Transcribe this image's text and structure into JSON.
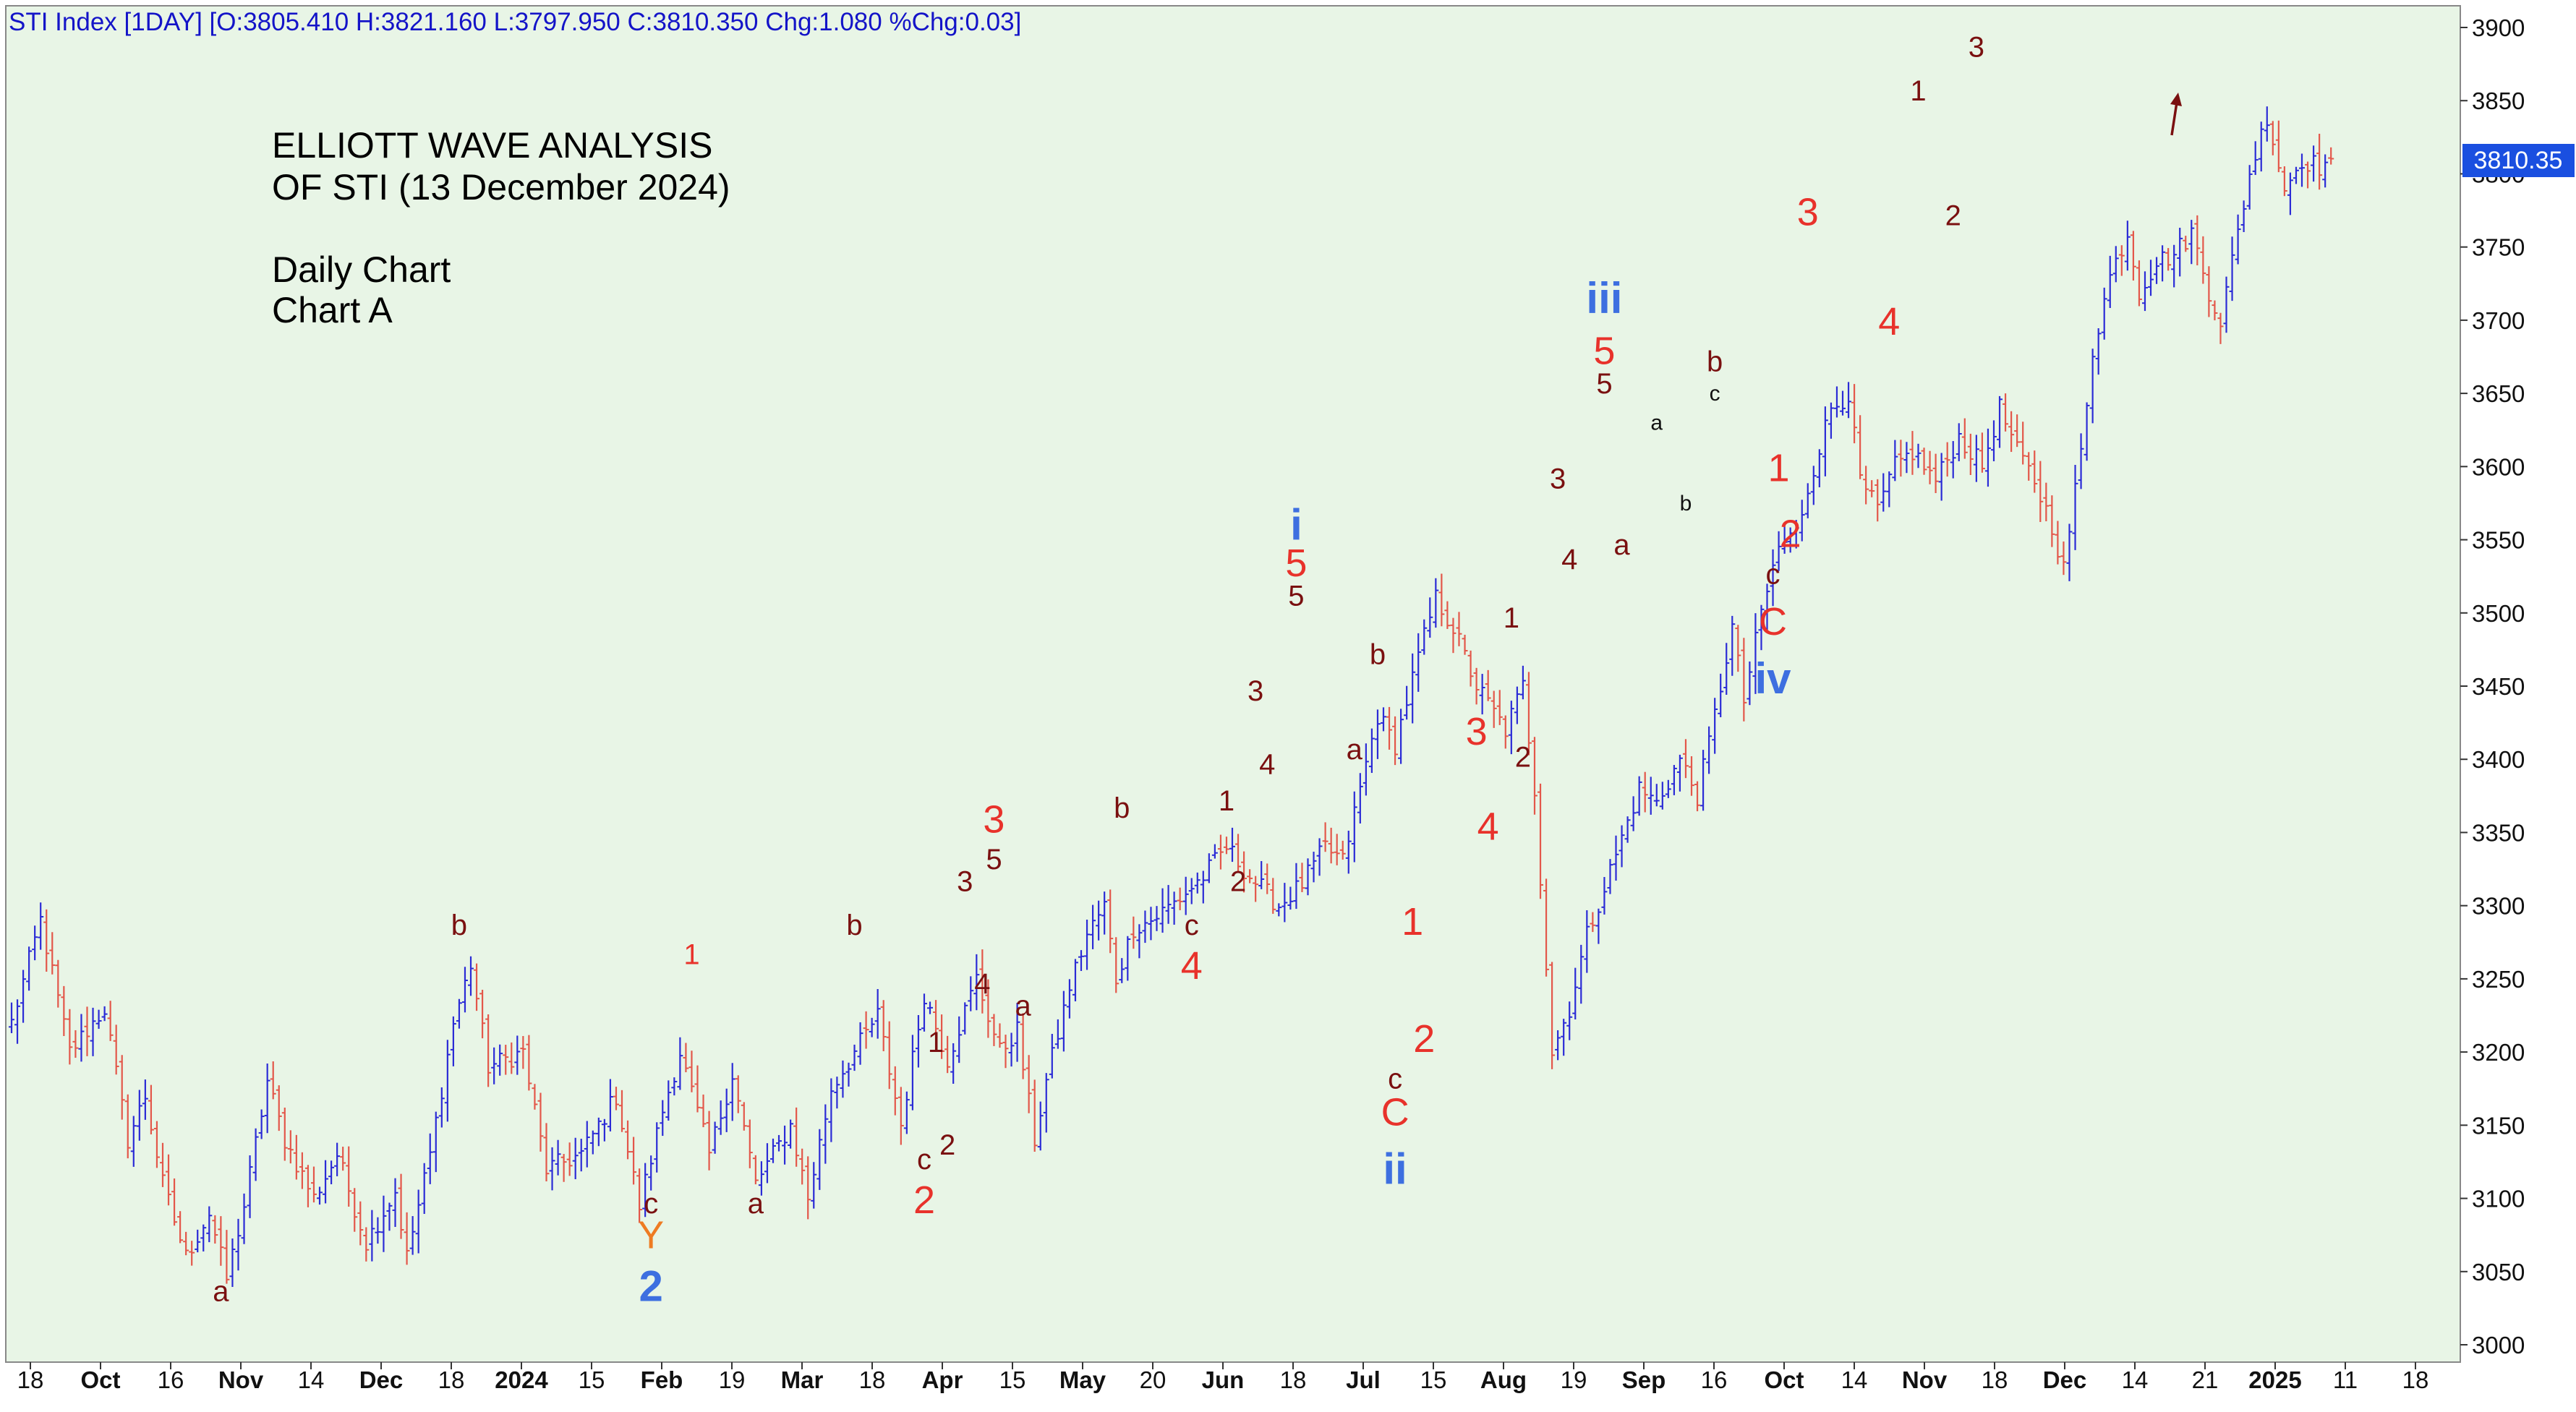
{
  "header": {
    "text": "STI Index [1DAY] [O:3805.410 H:3821.160 L:3797.950 C:3810.350 Chg:1.080 %Chg:0.03]"
  },
  "annotations": {
    "title_line1": "ELLIOTT WAVE ANALYSIS",
    "title_line2": "OF STI (13 December 2024)",
    "subtitle_line1": "Daily Chart",
    "subtitle_line2": "Chart A"
  },
  "price_tag": "3810.35",
  "colors": {
    "background": "#e8f5e6",
    "up_bar": "#2b2bd6",
    "down_bar": "#e3574a",
    "label_dark_red": "#7a1010",
    "label_red": "#e8322b",
    "label_blue": "#3d6fe0",
    "label_orange": "#ee7b22",
    "price_tag_bg": "#1a4fe0",
    "header_text": "#1414c8"
  },
  "chart_data": {
    "type": "ohlc",
    "ylim": [
      3000,
      3900
    ],
    "y_ticks": [
      3000,
      3050,
      3100,
      3150,
      3200,
      3250,
      3300,
      3350,
      3400,
      3450,
      3500,
      3550,
      3600,
      3650,
      3700,
      3750,
      3800,
      3850,
      3900
    ],
    "x_tick_labels": [
      {
        "label": "18",
        "bold": false
      },
      {
        "label": "Oct",
        "bold": true
      },
      {
        "label": "16",
        "bold": false
      },
      {
        "label": "Nov",
        "bold": true
      },
      {
        "label": "14",
        "bold": false
      },
      {
        "label": "Dec",
        "bold": true
      },
      {
        "label": "18",
        "bold": false
      },
      {
        "label": "2024",
        "bold": true
      },
      {
        "label": "15",
        "bold": false
      },
      {
        "label": "Feb",
        "bold": true
      },
      {
        "label": "19",
        "bold": false
      },
      {
        "label": "Mar",
        "bold": true
      },
      {
        "label": "18",
        "bold": false
      },
      {
        "label": "Apr",
        "bold": true
      },
      {
        "label": "15",
        "bold": false
      },
      {
        "label": "May",
        "bold": true
      },
      {
        "label": "20",
        "bold": false
      },
      {
        "label": "Jun",
        "bold": true
      },
      {
        "label": "18",
        "bold": false
      },
      {
        "label": "Jul",
        "bold": true
      },
      {
        "label": "15",
        "bold": false
      },
      {
        "label": "Aug",
        "bold": true
      },
      {
        "label": "19",
        "bold": false
      },
      {
        "label": "Sep",
        "bold": true
      },
      {
        "label": "16",
        "bold": false
      },
      {
        "label": "Oct",
        "bold": true
      },
      {
        "label": "14",
        "bold": false
      },
      {
        "label": "Nov",
        "bold": true
      },
      {
        "label": "18",
        "bold": false
      },
      {
        "label": "Dec",
        "bold": true
      },
      {
        "label": "14",
        "bold": false
      },
      {
        "label": "21",
        "bold": false
      },
      {
        "label": "2025",
        "bold": true
      },
      {
        "label": "11",
        "bold": false
      },
      {
        "label": "18",
        "bold": false
      }
    ],
    "path": [
      [
        0,
        3220
      ],
      [
        5,
        3290
      ],
      [
        10,
        3200
      ],
      [
        16,
        3230
      ],
      [
        20,
        3140
      ],
      [
        23,
        3170
      ],
      [
        26,
        3110
      ],
      [
        30,
        3060
      ],
      [
        34,
        3090
      ],
      [
        37,
        3045
      ],
      [
        40,
        3095
      ],
      [
        44,
        3180
      ],
      [
        47,
        3140
      ],
      [
        52,
        3100
      ],
      [
        56,
        3130
      ],
      [
        61,
        3070
      ],
      [
        66,
        3105
      ],
      [
        68,
        3060
      ],
      [
        72,
        3130
      ],
      [
        76,
        3220
      ],
      [
        79,
        3260
      ],
      [
        82,
        3190
      ],
      [
        88,
        3200
      ],
      [
        92,
        3120
      ],
      [
        98,
        3130
      ],
      [
        104,
        3170
      ],
      [
        108,
        3095
      ],
      [
        112,
        3160
      ],
      [
        115,
        3200
      ],
      [
        120,
        3130
      ],
      [
        124,
        3185
      ],
      [
        128,
        3110
      ],
      [
        134,
        3150
      ],
      [
        137,
        3100
      ],
      [
        141,
        3175
      ],
      [
        145,
        3200
      ],
      [
        149,
        3225
      ],
      [
        153,
        3150
      ],
      [
        157,
        3240
      ],
      [
        161,
        3195
      ],
      [
        166,
        3250
      ],
      [
        170,
        3200
      ],
      [
        173,
        3215
      ],
      [
        176,
        3140
      ],
      [
        178,
        3180
      ],
      [
        182,
        3245
      ],
      [
        185,
        3280
      ],
      [
        188,
        3300
      ],
      [
        190,
        3250
      ],
      [
        193,
        3285
      ],
      [
        196,
        3290
      ],
      [
        201,
        3305
      ],
      [
        205,
        3320
      ],
      [
        209,
        3340
      ],
      [
        213,
        3320
      ],
      [
        218,
        3300
      ],
      [
        222,
        3315
      ],
      [
        226,
        3340
      ],
      [
        229,
        3330
      ],
      [
        232,
        3380
      ],
      [
        235,
        3430
      ],
      [
        238,
        3410
      ],
      [
        242,
        3470
      ],
      [
        245,
        3510
      ],
      [
        248,
        3490
      ],
      [
        252,
        3450
      ],
      [
        257,
        3420
      ],
      [
        260,
        3450
      ],
      [
        262,
        3380
      ],
      [
        265,
        3200
      ],
      [
        268,
        3230
      ],
      [
        271,
        3280
      ],
      [
        276,
        3335
      ],
      [
        280,
        3380
      ],
      [
        283,
        3370
      ],
      [
        287,
        3400
      ],
      [
        290,
        3375
      ],
      [
        293,
        3430
      ],
      [
        296,
        3490
      ],
      [
        298,
        3440
      ],
      [
        301,
        3500
      ],
      [
        304,
        3545
      ],
      [
        307,
        3555
      ],
      [
        310,
        3600
      ],
      [
        313,
        3640
      ],
      [
        316,
        3650
      ],
      [
        318,
        3590
      ],
      [
        321,
        3570
      ],
      [
        324,
        3600
      ],
      [
        327,
        3610
      ],
      [
        331,
        3590
      ],
      [
        335,
        3620
      ],
      [
        339,
        3600
      ],
      [
        342,
        3640
      ],
      [
        345,
        3610
      ],
      [
        348,
        3590
      ],
      [
        351,
        3560
      ],
      [
        353,
        3530
      ],
      [
        356,
        3610
      ],
      [
        358,
        3680
      ],
      [
        361,
        3730
      ],
      [
        364,
        3760
      ],
      [
        366,
        3720
      ],
      [
        369,
        3740
      ],
      [
        372,
        3745
      ],
      [
        375,
        3760
      ],
      [
        378,
        3720
      ],
      [
        380,
        3700
      ],
      [
        382,
        3740
      ],
      [
        385,
        3800
      ],
      [
        388,
        3840
      ],
      [
        391,
        3790
      ],
      [
        394,
        3810
      ],
      [
        397,
        3805
      ],
      [
        399,
        3810
      ]
    ],
    "wave_labels": [
      {
        "t": "b",
        "i": 77,
        "p": 3280,
        "c": "dark",
        "s": "s"
      },
      {
        "t": "a",
        "i": 36,
        "p": 3030,
        "c": "dark",
        "s": "s"
      },
      {
        "t": "1",
        "i": 117,
        "p": 3260,
        "c": "red",
        "s": "s"
      },
      {
        "t": "c",
        "i": 110,
        "p": 3090,
        "c": "dark",
        "s": "s"
      },
      {
        "t": "Y",
        "i": 110,
        "p": 3066,
        "c": "orange",
        "s": "m"
      },
      {
        "t": "2",
        "i": 110,
        "p": 3030,
        "c": "blue",
        "s": "l"
      },
      {
        "t": "a",
        "i": 128,
        "p": 3090,
        "c": "dark",
        "s": "s"
      },
      {
        "t": "b",
        "i": 145,
        "p": 3280,
        "c": "dark",
        "s": "s"
      },
      {
        "t": "1",
        "i": 159,
        "p": 3200,
        "c": "dark",
        "s": "s"
      },
      {
        "t": "c",
        "i": 157,
        "p": 3120,
        "c": "dark",
        "s": "s"
      },
      {
        "t": "2",
        "i": 161,
        "p": 3130,
        "c": "dark",
        "s": "s"
      },
      {
        "t": "2",
        "i": 157,
        "p": 3090,
        "c": "red",
        "s": "m"
      },
      {
        "t": "3",
        "i": 164,
        "p": 3310,
        "c": "dark",
        "s": "s"
      },
      {
        "t": "3",
        "i": 169,
        "p": 3350,
        "c": "red",
        "s": "m"
      },
      {
        "t": "5",
        "i": 169,
        "p": 3325,
        "c": "dark",
        "s": "s"
      },
      {
        "t": "4",
        "i": 167,
        "p": 3240,
        "c": "dark",
        "s": "s"
      },
      {
        "t": "a",
        "i": 174,
        "p": 3225,
        "c": "dark",
        "s": "s"
      },
      {
        "t": "b",
        "i": 191,
        "p": 3360,
        "c": "dark",
        "s": "s"
      },
      {
        "t": "c",
        "i": 203,
        "p": 3280,
        "c": "dark",
        "s": "s"
      },
      {
        "t": "4",
        "i": 203,
        "p": 3250,
        "c": "red",
        "s": "m"
      },
      {
        "t": "1",
        "i": 209,
        "p": 3365,
        "c": "dark",
        "s": "s"
      },
      {
        "t": "2",
        "i": 211,
        "p": 3310,
        "c": "dark",
        "s": "s"
      },
      {
        "t": "3",
        "i": 214,
        "p": 3440,
        "c": "dark",
        "s": "s"
      },
      {
        "t": "4",
        "i": 216,
        "p": 3390,
        "c": "dark",
        "s": "s"
      },
      {
        "t": "i",
        "i": 221,
        "p": 3550,
        "c": "blue",
        "s": "l"
      },
      {
        "t": "5",
        "i": 221,
        "p": 3525,
        "c": "red",
        "s": "m"
      },
      {
        "t": "5",
        "i": 221,
        "p": 3505,
        "c": "dark",
        "s": "s"
      },
      {
        "t": "b",
        "i": 235,
        "p": 3465,
        "c": "dark",
        "s": "s"
      },
      {
        "t": "a",
        "i": 231,
        "p": 3400,
        "c": "dark",
        "s": "s"
      },
      {
        "t": "1",
        "i": 241,
        "p": 3280,
        "c": "red",
        "s": "m"
      },
      {
        "t": "2",
        "i": 243,
        "p": 3200,
        "c": "red",
        "s": "m"
      },
      {
        "t": "c",
        "i": 238,
        "p": 3175,
        "c": "dark",
        "s": "s"
      },
      {
        "t": "C",
        "i": 238,
        "p": 3150,
        "c": "red",
        "s": "m"
      },
      {
        "t": "ii",
        "i": 238,
        "p": 3110,
        "c": "blue",
        "s": "l"
      },
      {
        "t": "3",
        "i": 252,
        "p": 3410,
        "c": "red",
        "s": "m"
      },
      {
        "t": "4",
        "i": 254,
        "p": 3345,
        "c": "red",
        "s": "m"
      },
      {
        "t": "1",
        "i": 258,
        "p": 3490,
        "c": "dark",
        "s": "s"
      },
      {
        "t": "2",
        "i": 260,
        "p": 3395,
        "c": "dark",
        "s": "s"
      },
      {
        "t": "3",
        "i": 266,
        "p": 3585,
        "c": "dark",
        "s": "s"
      },
      {
        "t": "4",
        "i": 268,
        "p": 3530,
        "c": "dark",
        "s": "s"
      },
      {
        "t": "iii",
        "i": 274,
        "p": 3705,
        "c": "blue",
        "s": "l"
      },
      {
        "t": "5",
        "i": 274,
        "p": 3670,
        "c": "red",
        "s": "m"
      },
      {
        "t": "5",
        "i": 274,
        "p": 3650,
        "c": "dark",
        "s": "s"
      },
      {
        "t": "a",
        "i": 277,
        "p": 3540,
        "c": "dark",
        "s": "s"
      },
      {
        "t": "a",
        "i": 283,
        "p": 3625,
        "c": "black",
        "s": "xs"
      },
      {
        "t": "b",
        "i": 288,
        "p": 3570,
        "c": "black",
        "s": "xs"
      },
      {
        "t": "b",
        "i": 293,
        "p": 3665,
        "c": "dark",
        "s": "s"
      },
      {
        "t": "c",
        "i": 293,
        "p": 3645,
        "c": "black",
        "s": "xs"
      },
      {
        "t": "1",
        "i": 304,
        "p": 3590,
        "c": "red",
        "s": "m"
      },
      {
        "t": "2",
        "i": 306,
        "p": 3545,
        "c": "red",
        "s": "m"
      },
      {
        "t": "c",
        "i": 303,
        "p": 3520,
        "c": "dark",
        "s": "s"
      },
      {
        "t": "C",
        "i": 303,
        "p": 3485,
        "c": "red",
        "s": "m"
      },
      {
        "t": "iv",
        "i": 303,
        "p": 3445,
        "c": "blue",
        "s": "l"
      },
      {
        "t": "3",
        "i": 309,
        "p": 3765,
        "c": "red",
        "s": "m"
      },
      {
        "t": "4",
        "i": 323,
        "p": 3690,
        "c": "red",
        "s": "m"
      },
      {
        "t": "1",
        "i": 328,
        "p": 3850,
        "c": "dark",
        "s": "s"
      },
      {
        "t": "2",
        "i": 334,
        "p": 3765,
        "c": "dark",
        "s": "s"
      },
      {
        "t": "3",
        "i": 338,
        "p": 3880,
        "c": "dark",
        "s": "s"
      }
    ]
  }
}
